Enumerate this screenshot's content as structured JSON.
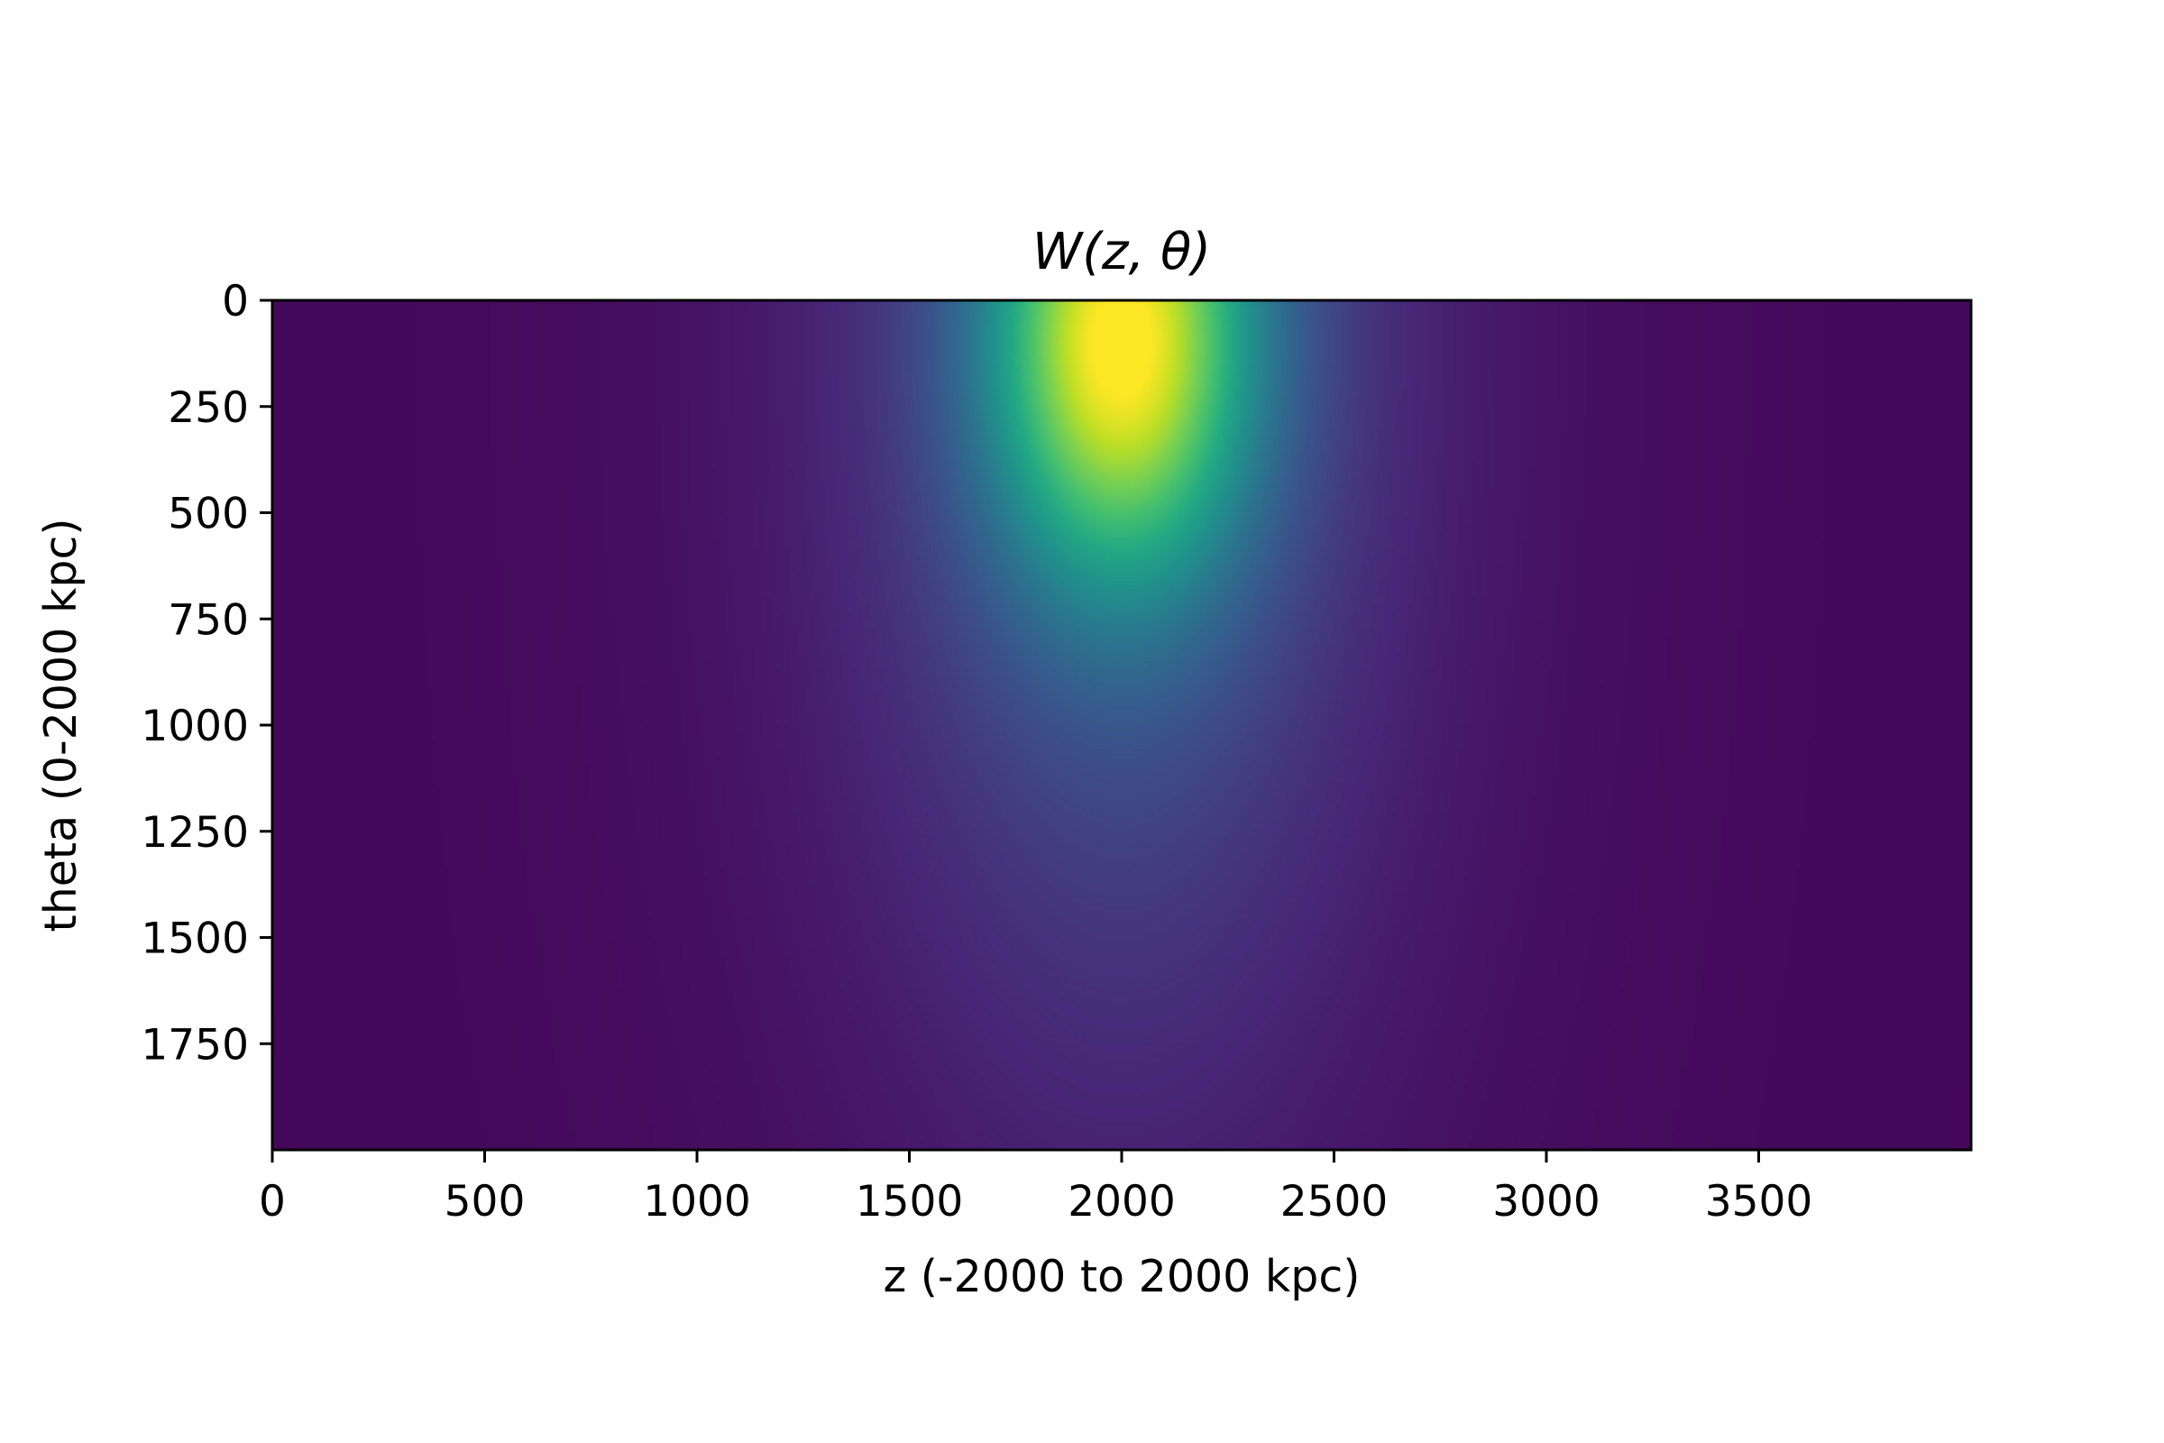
{
  "chart_data": {
    "type": "heatmap",
    "title": "W(z, θ)",
    "xlabel": "z (-2000 to 2000 kpc)",
    "ylabel": "theta (0-2000 kpc)",
    "xlim": [
      0,
      4000
    ],
    "ylim": [
      2000,
      0
    ],
    "x_ticks": [
      0,
      500,
      1000,
      1500,
      2000,
      2500,
      3000,
      3500
    ],
    "x_tick_labels": [
      "0",
      "500",
      "1000",
      "1500",
      "2000",
      "2500",
      "3000",
      "3500"
    ],
    "y_ticks": [
      0,
      250,
      500,
      750,
      1000,
      1250,
      1500,
      1750
    ],
    "y_tick_labels": [
      "0",
      "250",
      "500",
      "750",
      "1000",
      "1250",
      "1500",
      "1750"
    ],
    "colormap": "viridis",
    "peak": {
      "x": 2000,
      "y": 100
    },
    "grid": false,
    "legend": "none"
  }
}
